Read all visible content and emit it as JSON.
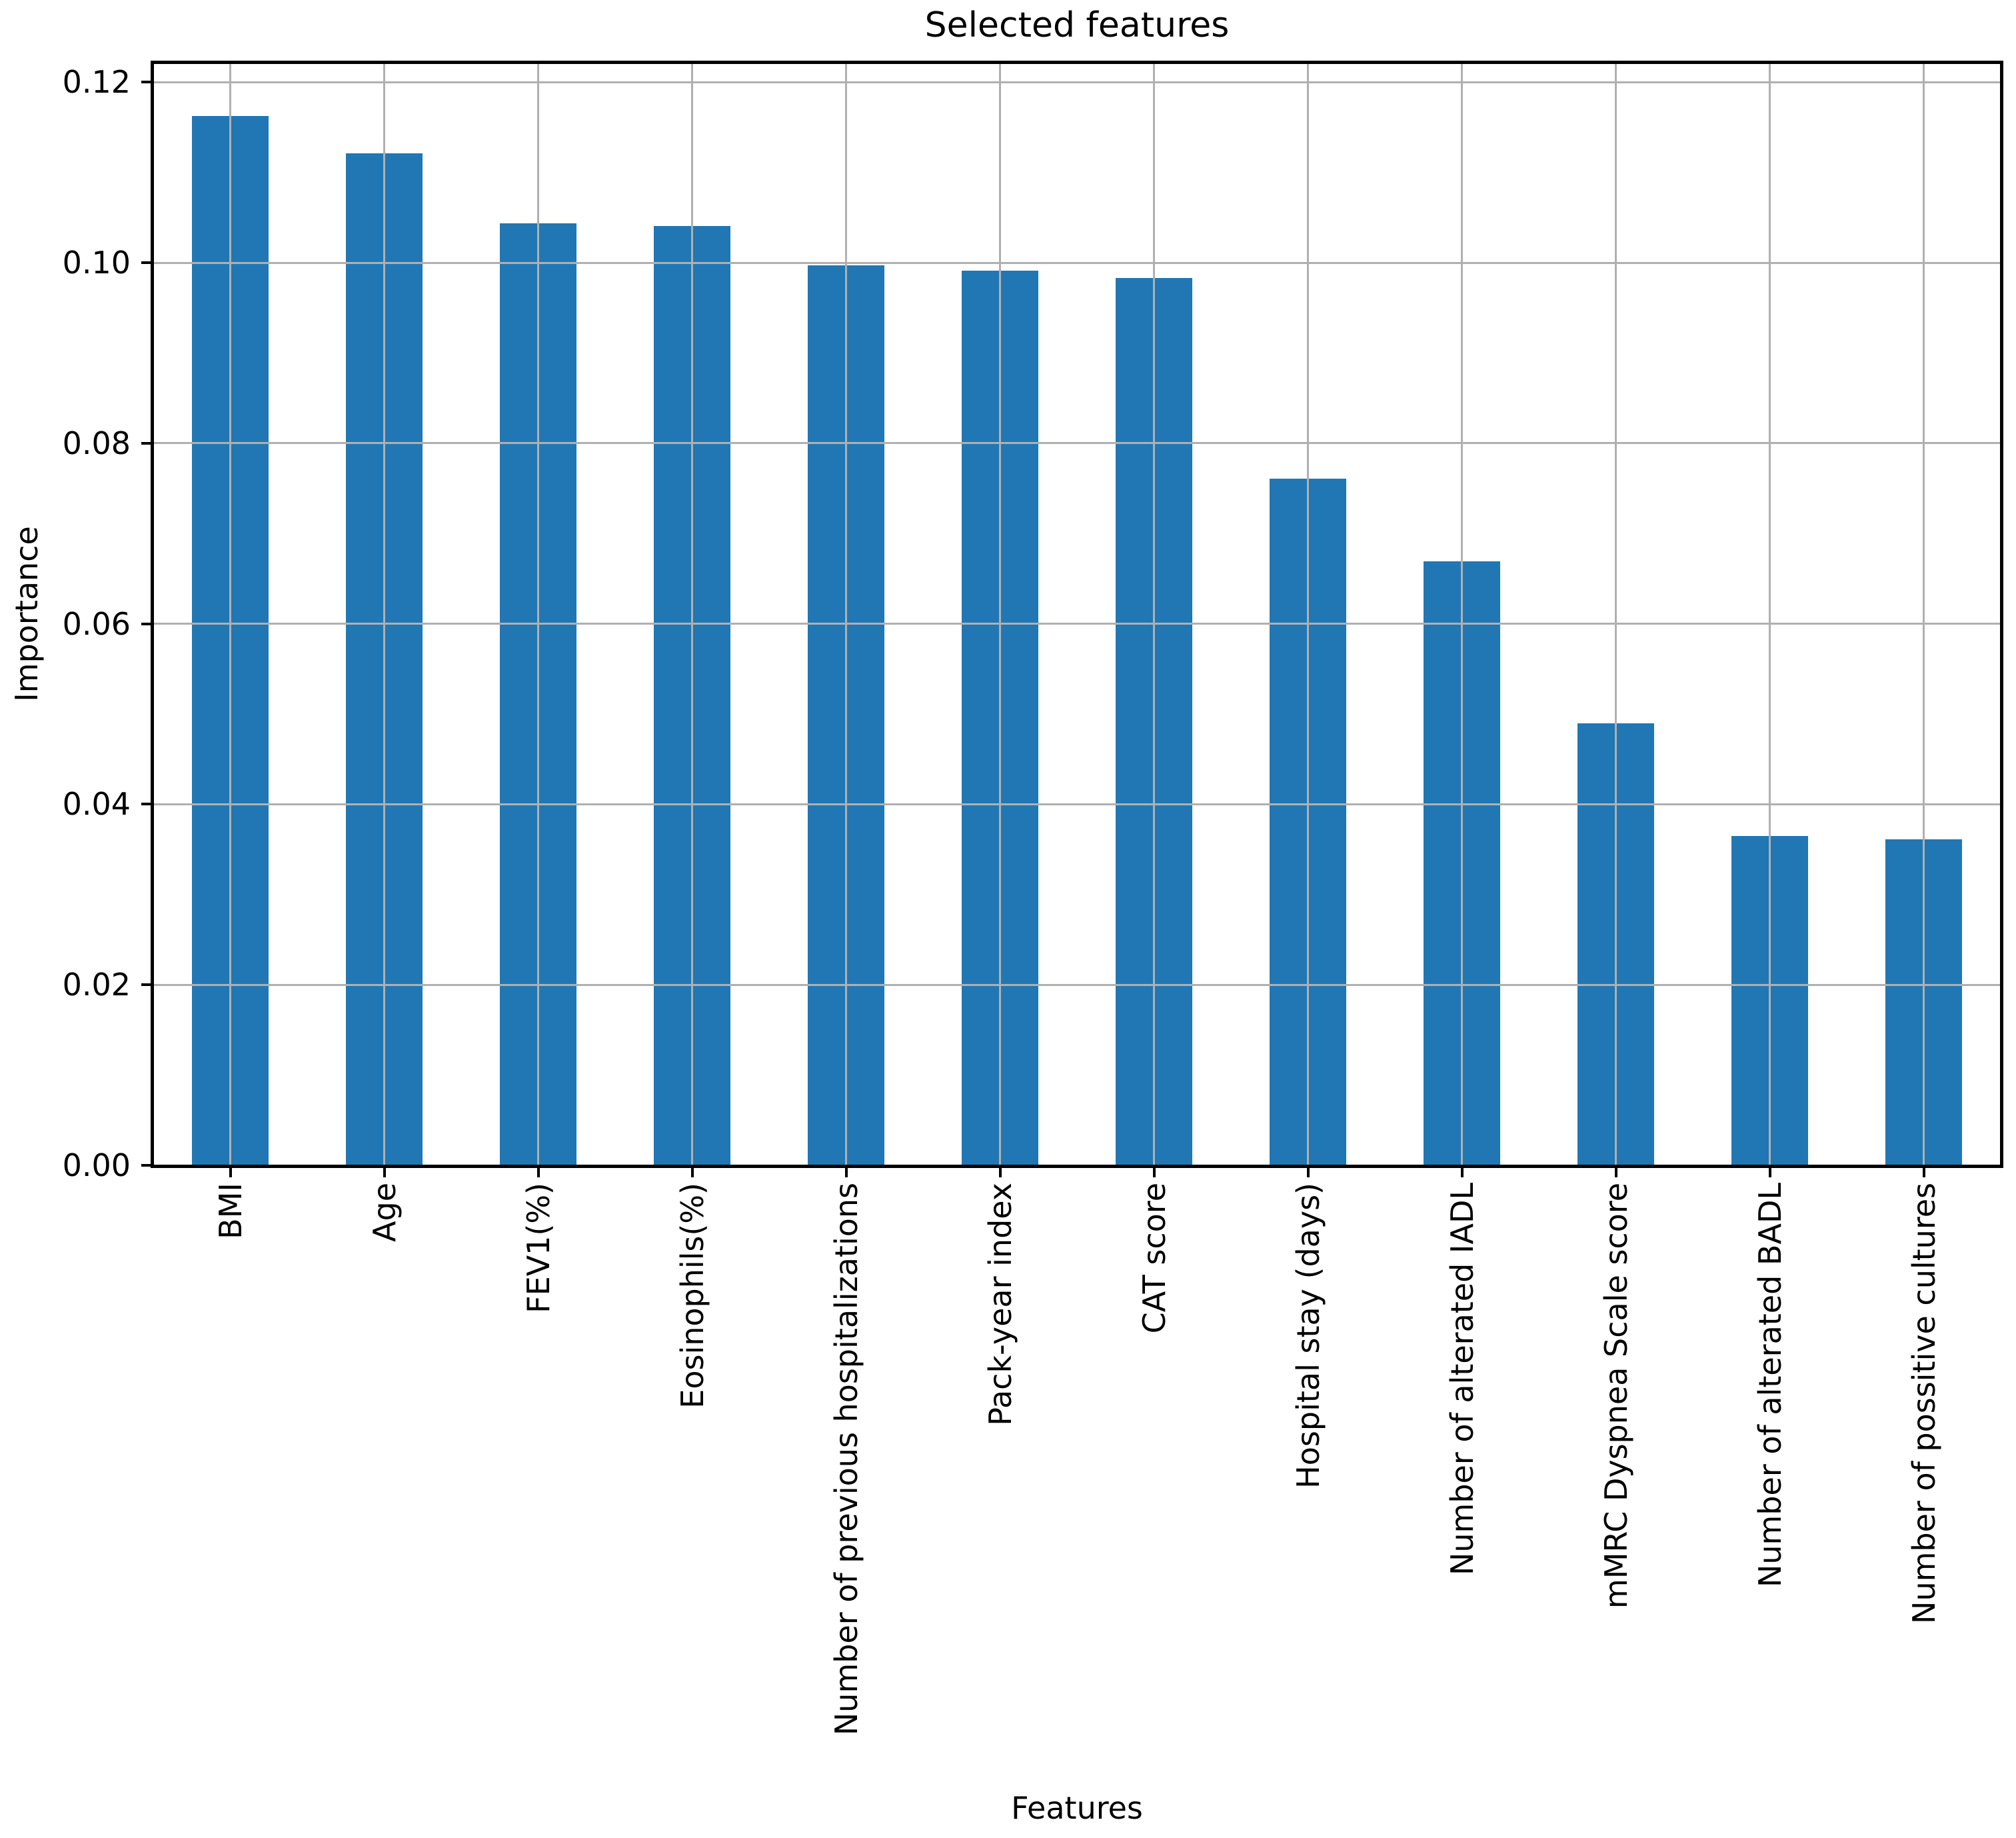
{
  "figure": {
    "background": "#ffffff",
    "text_color": "#000000"
  },
  "chart_data": {
    "type": "bar",
    "title": "Selected features",
    "xlabel": "Features",
    "ylabel": "Importance",
    "categories": [
      "BMI",
      "Age",
      "FEV1(%)",
      "Eosinophils(%)",
      "Number of previous hospitalizations",
      "Pack-year index",
      "CAT score",
      "Hospital stay (days)",
      "Number of alterated IADL",
      "mMRC Dyspnea Scale score",
      "Number of alterated BADL",
      "Number of possitive cultures"
    ],
    "values": [
      0.1163,
      0.1121,
      0.1044,
      0.1041,
      0.0997,
      0.0991,
      0.0983,
      0.0761,
      0.0669,
      0.049,
      0.0365,
      0.0361
    ],
    "ylim": [
      0,
      0.1221
    ],
    "yticks": [
      {
        "value": 0.0,
        "label": "0.00"
      },
      {
        "value": 0.02,
        "label": "0.02"
      },
      {
        "value": 0.04,
        "label": "0.04"
      },
      {
        "value": 0.06,
        "label": "0.06"
      },
      {
        "value": 0.08,
        "label": "0.08"
      },
      {
        "value": 0.1,
        "label": "0.10"
      },
      {
        "value": 0.12,
        "label": "0.12"
      }
    ],
    "grid": true,
    "grid_above_bars": true,
    "legend_position": "none",
    "bar_color": "#2077b4",
    "grid_color": "#b0b0b0",
    "bar_width_fraction": 0.5
  }
}
